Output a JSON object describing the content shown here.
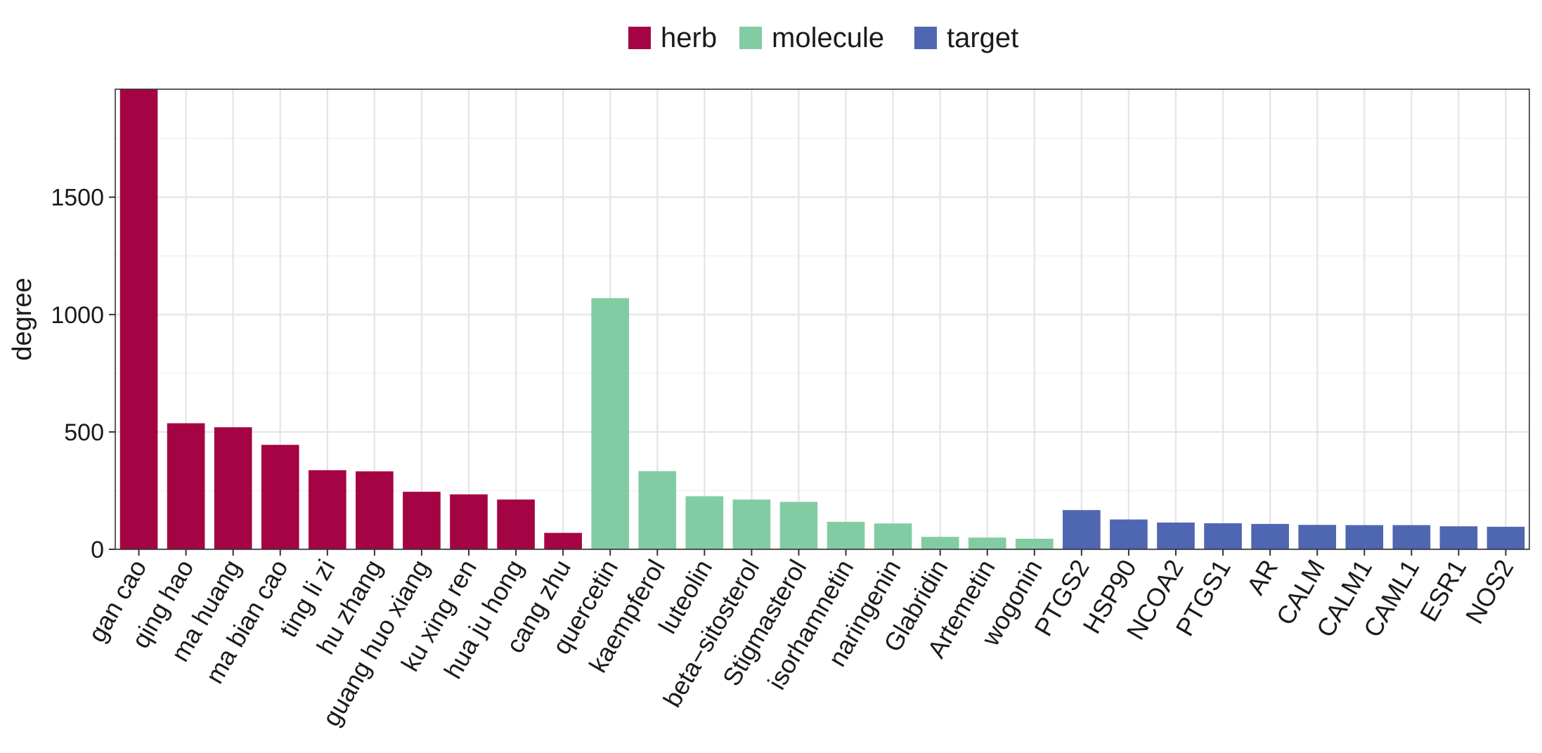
{
  "chart_data": {
    "type": "bar",
    "ylabel": "degree",
    "xlabel": "",
    "ylim": [
      0,
      1960
    ],
    "y_ticks": [
      0,
      500,
      1000,
      1500
    ],
    "grid": true,
    "legend_position": "top",
    "legend": [
      {
        "name": "herb",
        "color": "#a50444"
      },
      {
        "name": "molecule",
        "color": "#82cca4"
      },
      {
        "name": "target",
        "color": "#4f66b2"
      }
    ],
    "categories": [
      "gan cao",
      "qing hao",
      "ma huang",
      "ma bian cao",
      "ting li zi",
      "hu zhang",
      "guang huo xiang",
      "ku xing ren",
      "hua ju hong",
      "cang zhu",
      "quercetin",
      "kaempferol",
      "luteolin",
      "beta−sitosterol",
      "Stigmasterol",
      "isorhamnetin",
      "naringenin",
      "Glabridin",
      "Artemetin",
      "wogonin",
      "PTGS2",
      "HSP90",
      "NCOA2",
      "PTGS1",
      "AR",
      "CALM",
      "CALM1",
      "CAML1",
      "ESR1",
      "NOS2"
    ],
    "groups": [
      "herb",
      "herb",
      "herb",
      "herb",
      "herb",
      "herb",
      "herb",
      "herb",
      "herb",
      "herb",
      "molecule",
      "molecule",
      "molecule",
      "molecule",
      "molecule",
      "molecule",
      "molecule",
      "molecule",
      "molecule",
      "molecule",
      "target",
      "target",
      "target",
      "target",
      "target",
      "target",
      "target",
      "target",
      "target",
      "target"
    ],
    "values": [
      1960,
      537,
      520,
      445,
      337,
      332,
      245,
      234,
      212,
      70,
      1070,
      333,
      226,
      212,
      202,
      117,
      110,
      53,
      50,
      45,
      167,
      127,
      114,
      111,
      108,
      104,
      103,
      103,
      98,
      96
    ]
  }
}
